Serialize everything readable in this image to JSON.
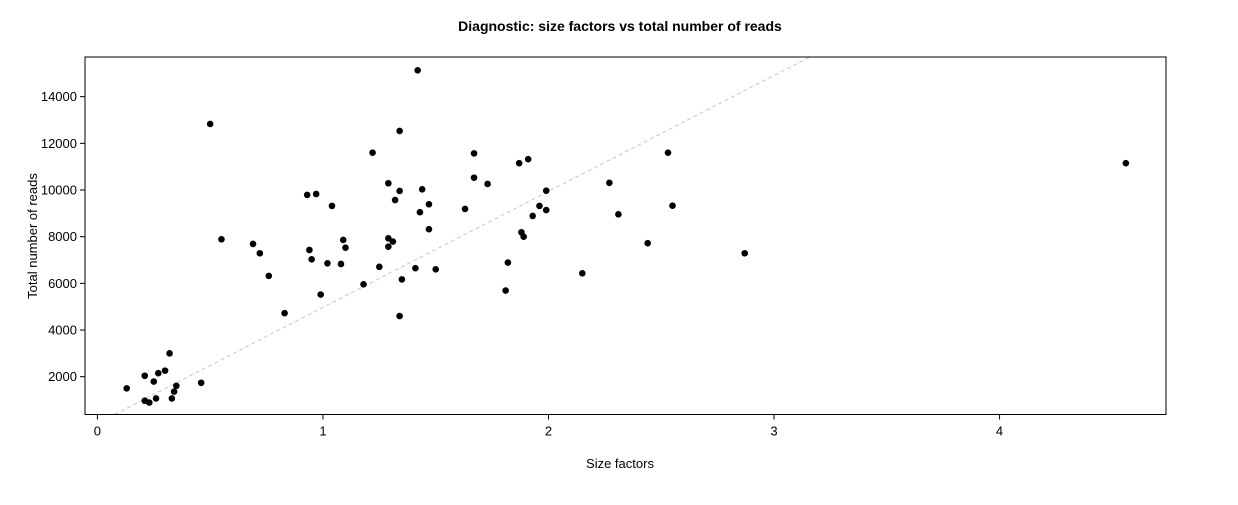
{
  "chart_data": {
    "type": "scatter",
    "title": "Diagnostic: size factors vs total number of reads",
    "xlabel": "Size factors",
    "ylabel": "Total number of reads",
    "xlim": [
      -0.055,
      4.738
    ],
    "ylim": [
      380,
      15700
    ],
    "xticks": [
      0,
      1,
      2,
      3,
      4
    ],
    "yticks": [
      2000,
      4000,
      6000,
      8000,
      10000,
      12000,
      14000
    ],
    "grid": false,
    "legend": "none",
    "background_color": "#ffffff",
    "axis_color": "#000000",
    "point_color": "#000000",
    "point_radius_px": 3.3,
    "reference_line": {
      "style": "dashed",
      "slope": 4970,
      "intercept": 0,
      "color": "#c6c6c6"
    },
    "points": [
      [
        0.13,
        1500
      ],
      [
        0.21,
        2040
      ],
      [
        0.27,
        2150
      ],
      [
        0.3,
        2260
      ],
      [
        0.25,
        1790
      ],
      [
        0.32,
        3000
      ],
      [
        0.35,
        1610
      ],
      [
        0.34,
        1360
      ],
      [
        0.21,
        970
      ],
      [
        0.23,
        890
      ],
      [
        0.26,
        1070
      ],
      [
        0.33,
        1070
      ],
      [
        0.46,
        1740
      ],
      [
        0.5,
        12830
      ],
      [
        0.55,
        7890
      ],
      [
        0.69,
        7690
      ],
      [
        0.72,
        7290
      ],
      [
        0.76,
        6320
      ],
      [
        0.83,
        4720
      ],
      [
        0.93,
        9790
      ],
      [
        0.97,
        9830
      ],
      [
        0.94,
        7430
      ],
      [
        0.95,
        7030
      ],
      [
        1.04,
        9320
      ],
      [
        1.02,
        6860
      ],
      [
        1.08,
        6830
      ],
      [
        1.09,
        7860
      ],
      [
        1.1,
        7530
      ],
      [
        0.99,
        5520
      ],
      [
        1.18,
        5960
      ],
      [
        1.22,
        11600
      ],
      [
        1.25,
        6710
      ],
      [
        1.29,
        10290
      ],
      [
        1.34,
        9960
      ],
      [
        1.32,
        9570
      ],
      [
        1.29,
        7930
      ],
      [
        1.31,
        7790
      ],
      [
        1.29,
        7570
      ],
      [
        1.35,
        6170
      ],
      [
        1.34,
        4600
      ],
      [
        1.34,
        12530
      ],
      [
        1.42,
        15130
      ],
      [
        1.44,
        10030
      ],
      [
        1.47,
        9390
      ],
      [
        1.43,
        9050
      ],
      [
        1.47,
        8320
      ],
      [
        1.41,
        6650
      ],
      [
        1.5,
        6600
      ],
      [
        1.63,
        9190
      ],
      [
        1.67,
        11570
      ],
      [
        1.67,
        10530
      ],
      [
        1.73,
        10260
      ],
      [
        1.87,
        11150
      ],
      [
        1.91,
        11320
      ],
      [
        1.88,
        8190
      ],
      [
        1.89,
        8000
      ],
      [
        1.82,
        6890
      ],
      [
        1.81,
        5690
      ],
      [
        1.99,
        9970
      ],
      [
        1.96,
        9320
      ],
      [
        1.99,
        9140
      ],
      [
        1.93,
        8890
      ],
      [
        2.15,
        6430
      ],
      [
        2.27,
        10310
      ],
      [
        2.31,
        8960
      ],
      [
        2.44,
        7720
      ],
      [
        2.53,
        11600
      ],
      [
        2.55,
        9330
      ],
      [
        2.87,
        7290
      ],
      [
        4.56,
        11150
      ]
    ]
  }
}
